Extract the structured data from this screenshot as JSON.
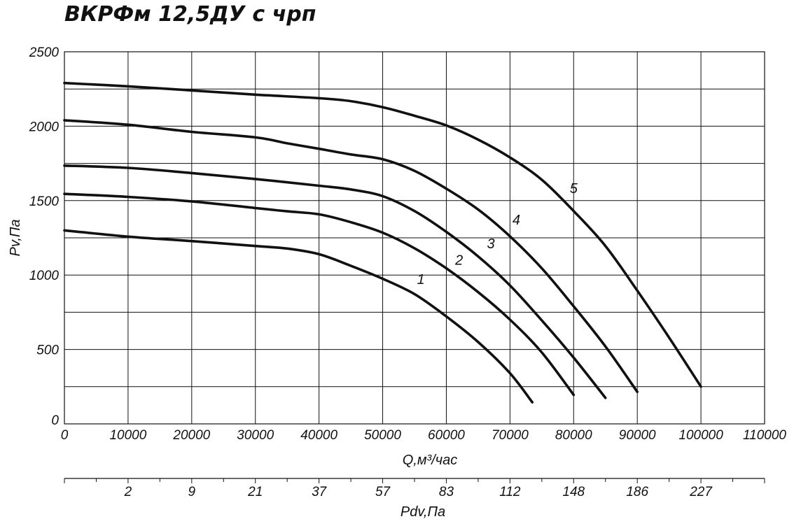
{
  "chart_data": {
    "type": "line",
    "title": "ВКРФм 12,5ДУ с чрп",
    "xlabel": "Q,м³/час",
    "ylabel": "Pv,Па",
    "x2label": "Pdv,Па",
    "xlim": [
      0,
      110000
    ],
    "ylim": [
      0,
      2500
    ],
    "x_ticks": [
      0,
      10000,
      20000,
      30000,
      40000,
      50000,
      60000,
      70000,
      80000,
      90000,
      100000,
      110000
    ],
    "x_tick_labels": [
      "0",
      "10000",
      "20000",
      "30000",
      "40000",
      "50000",
      "60000",
      "70000",
      "80000",
      "90000",
      "100000",
      "110000"
    ],
    "y_ticks": [
      0,
      500,
      1000,
      1500,
      2000,
      2500
    ],
    "y_tick_labels": [
      "0",
      "500",
      "1000",
      "1500",
      "2000",
      "2500"
    ],
    "y_minor_step": 250,
    "grid": true,
    "x2_ticks": [
      {
        "x": 10000,
        "label": "2"
      },
      {
        "x": 20000,
        "label": "9"
      },
      {
        "x": 30000,
        "label": "21"
      },
      {
        "x": 40000,
        "label": "37"
      },
      {
        "x": 50000,
        "label": "57"
      },
      {
        "x": 60000,
        "label": "83"
      },
      {
        "x": 70000,
        "label": "112"
      },
      {
        "x": 80000,
        "label": "148"
      },
      {
        "x": 90000,
        "label": "186"
      },
      {
        "x": 100000,
        "label": "227"
      }
    ],
    "series": [
      {
        "name": "1",
        "label_at": [
          56000,
          940
        ],
        "points": [
          [
            0,
            1300
          ],
          [
            10000,
            1258
          ],
          [
            20000,
            1228
          ],
          [
            30000,
            1195
          ],
          [
            35000,
            1178
          ],
          [
            40000,
            1140
          ],
          [
            45000,
            1062
          ],
          [
            50000,
            975
          ],
          [
            55000,
            872
          ],
          [
            60000,
            722
          ],
          [
            65000,
            550
          ],
          [
            70000,
            340
          ],
          [
            73500,
            145
          ]
        ]
      },
      {
        "name": "2",
        "label_at": [
          62000,
          1070
        ],
        "points": [
          [
            0,
            1545
          ],
          [
            10000,
            1525
          ],
          [
            20000,
            1495
          ],
          [
            30000,
            1450
          ],
          [
            35000,
            1428
          ],
          [
            40000,
            1408
          ],
          [
            45000,
            1355
          ],
          [
            50000,
            1285
          ],
          [
            55000,
            1180
          ],
          [
            60000,
            1045
          ],
          [
            65000,
            885
          ],
          [
            70000,
            700
          ],
          [
            75000,
            480
          ],
          [
            80000,
            195
          ]
        ]
      },
      {
        "name": "3",
        "label_at": [
          67000,
          1180
        ],
        "points": [
          [
            0,
            1735
          ],
          [
            10000,
            1720
          ],
          [
            20000,
            1685
          ],
          [
            30000,
            1645
          ],
          [
            40000,
            1600
          ],
          [
            45000,
            1575
          ],
          [
            50000,
            1530
          ],
          [
            55000,
            1430
          ],
          [
            60000,
            1290
          ],
          [
            65000,
            1125
          ],
          [
            70000,
            930
          ],
          [
            75000,
            695
          ],
          [
            80000,
            445
          ],
          [
            85000,
            175
          ]
        ]
      },
      {
        "name": "4",
        "label_at": [
          71000,
          1340
        ],
        "points": [
          [
            0,
            2040
          ],
          [
            10000,
            2010
          ],
          [
            20000,
            1962
          ],
          [
            30000,
            1925
          ],
          [
            35000,
            1885
          ],
          [
            40000,
            1848
          ],
          [
            45000,
            1810
          ],
          [
            50000,
            1778
          ],
          [
            55000,
            1700
          ],
          [
            60000,
            1580
          ],
          [
            65000,
            1440
          ],
          [
            70000,
            1260
          ],
          [
            75000,
            1045
          ],
          [
            80000,
            790
          ],
          [
            85000,
            520
          ],
          [
            90000,
            215
          ]
        ]
      },
      {
        "name": "5",
        "label_at": [
          80000,
          1550
        ],
        "points": [
          [
            0,
            2290
          ],
          [
            10000,
            2268
          ],
          [
            20000,
            2240
          ],
          [
            30000,
            2212
          ],
          [
            40000,
            2188
          ],
          [
            45000,
            2168
          ],
          [
            50000,
            2128
          ],
          [
            55000,
            2070
          ],
          [
            60000,
            2005
          ],
          [
            65000,
            1910
          ],
          [
            70000,
            1790
          ],
          [
            75000,
            1640
          ],
          [
            80000,
            1430
          ],
          [
            85000,
            1195
          ],
          [
            90000,
            895
          ],
          [
            95000,
            580
          ],
          [
            100000,
            250
          ]
        ]
      }
    ]
  }
}
